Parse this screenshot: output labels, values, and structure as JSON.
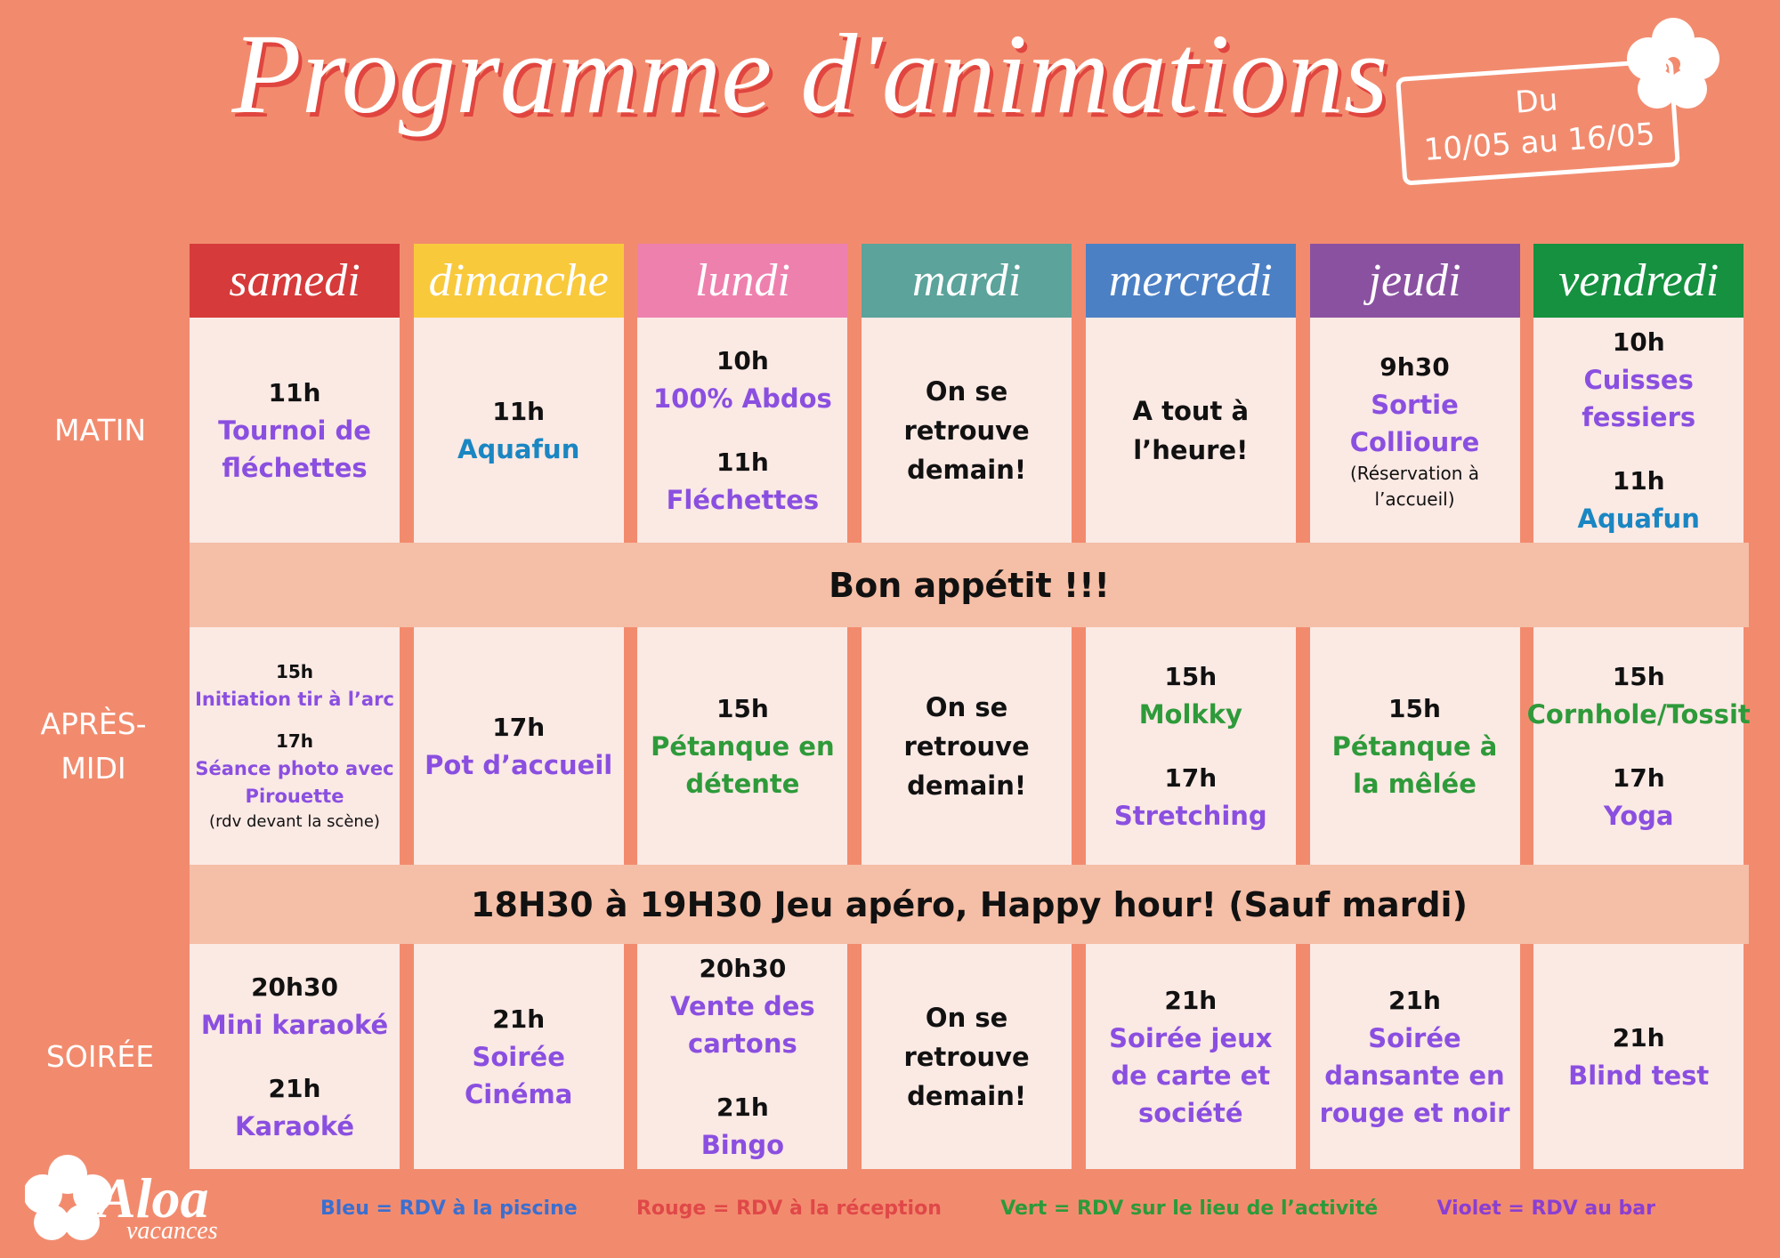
{
  "title": "Programme d'animations",
  "date_badge": {
    "line1": "Du",
    "line2": "10/05 au 16/05"
  },
  "days": [
    {
      "name": "samedi",
      "color": "#d63a3a"
    },
    {
      "name": "dimanche",
      "color": "#f9c93c"
    },
    {
      "name": "lundi",
      "color": "#ee80ae"
    },
    {
      "name": "mardi",
      "color": "#5ba39b"
    },
    {
      "name": "mercredi",
      "color": "#4c80c5"
    },
    {
      "name": "jeudi",
      "color": "#8a51a1"
    },
    {
      "name": "vendredi",
      "color": "#15913f"
    }
  ],
  "periods": [
    "MATIN",
    "APRÈS-MIDI",
    "SOIRÉE"
  ],
  "banners": [
    "Bon appétit !!!",
    "18H30 à 19H30 Jeu apéro, Happy hour! (Sauf mardi)"
  ],
  "kind_colors": {
    "time": "#111111",
    "purple": "#8a4fe0",
    "blue": "#1a86c2",
    "green": "#2e9a3a",
    "plain": "#111111",
    "note": "#111111"
  },
  "cells": [
    [
      [
        [
          {
            "text": "11h",
            "kind": "time"
          },
          {
            "text": "Tournoi de fléchettes",
            "kind": "purple"
          }
        ]
      ],
      [
        [
          {
            "text": "11h",
            "kind": "time"
          },
          {
            "text": "Aquafun",
            "kind": "blue"
          }
        ]
      ],
      [
        [
          {
            "text": "10h",
            "kind": "time"
          },
          {
            "text": "100% Abdos",
            "kind": "purple"
          }
        ],
        [
          {
            "text": "11h",
            "kind": "time"
          },
          {
            "text": "Fléchettes",
            "kind": "purple"
          }
        ]
      ],
      [
        [
          {
            "text": "On se retrouve demain!",
            "kind": "plain"
          }
        ]
      ],
      [
        [
          {
            "text": "A tout à l’heure!",
            "kind": "plain"
          }
        ]
      ],
      [
        [
          {
            "text": "9h30",
            "kind": "time"
          },
          {
            "text": "Sortie Collioure",
            "kind": "purple"
          },
          {
            "text": "(Réservation à l’accueil)",
            "kind": "note"
          }
        ]
      ],
      [
        [
          {
            "text": "10h",
            "kind": "time"
          },
          {
            "text": "Cuisses fessiers",
            "kind": "purple"
          }
        ],
        [
          {
            "text": "11h",
            "kind": "time"
          },
          {
            "text": "Aquafun",
            "kind": "blue"
          }
        ]
      ]
    ],
    [
      [
        [
          {
            "text": "15h",
            "kind": "time"
          },
          {
            "text": "Initiation tir à l’arc",
            "kind": "purple"
          }
        ],
        [
          {
            "text": "17h",
            "kind": "time"
          },
          {
            "text": "Séance photo avec Pirouette",
            "kind": "purple"
          },
          {
            "text": "(rdv devant la scène)",
            "kind": "note"
          }
        ]
      ],
      [
        [
          {
            "text": "17h",
            "kind": "time"
          },
          {
            "text": "Pot d’accueil",
            "kind": "purple"
          }
        ]
      ],
      [
        [
          {
            "text": "15h",
            "kind": "time"
          },
          {
            "text": "Pétanque en détente",
            "kind": "green"
          }
        ]
      ],
      [
        [
          {
            "text": "On se retrouve demain!",
            "kind": "plain"
          }
        ]
      ],
      [
        [
          {
            "text": "15h",
            "kind": "time"
          },
          {
            "text": "Molkky",
            "kind": "green"
          }
        ],
        [
          {
            "text": "17h",
            "kind": "time"
          },
          {
            "text": "Stretching",
            "kind": "purple"
          }
        ]
      ],
      [
        [
          {
            "text": "15h",
            "kind": "time"
          },
          {
            "text": "Pétanque à la mêlée",
            "kind": "green"
          }
        ]
      ],
      [
        [
          {
            "text": "15h",
            "kind": "time"
          },
          {
            "text": "Cornhole/Tossit",
            "kind": "green"
          }
        ],
        [
          {
            "text": "17h",
            "kind": "time"
          },
          {
            "text": "Yoga",
            "kind": "purple"
          }
        ]
      ]
    ],
    [
      [
        [
          {
            "text": "20h30",
            "kind": "time"
          },
          {
            "text": "Mini karaoké",
            "kind": "purple"
          }
        ],
        [
          {
            "text": "21h",
            "kind": "time"
          },
          {
            "text": "Karaoké",
            "kind": "purple"
          }
        ]
      ],
      [
        [
          {
            "text": "21h",
            "kind": "time"
          },
          {
            "text": "Soirée Cinéma",
            "kind": "purple"
          }
        ]
      ],
      [
        [
          {
            "text": "20h30",
            "kind": "time"
          },
          {
            "text": "Vente des cartons",
            "kind": "purple"
          }
        ],
        [
          {
            "text": "21h",
            "kind": "time"
          },
          {
            "text": "Bingo",
            "kind": "purple"
          }
        ]
      ],
      [
        [
          {
            "text": "On se retrouve demain!",
            "kind": "plain"
          }
        ]
      ],
      [
        [
          {
            "text": "21h",
            "kind": "time"
          },
          {
            "text": "Soirée jeux de carte et société",
            "kind": "purple"
          }
        ]
      ],
      [
        [
          {
            "text": "21h",
            "kind": "time"
          },
          {
            "text": "Soirée dansante en rouge et noir",
            "kind": "purple"
          }
        ]
      ],
      [
        [
          {
            "text": "21h",
            "kind": "time"
          },
          {
            "text": "Blind test",
            "kind": "purple"
          }
        ]
      ]
    ]
  ],
  "legend": [
    {
      "text": "Bleu = RDV à la piscine",
      "color": "#3a6fd0"
    },
    {
      "text": "Rouge = RDV à la réception",
      "color": "#e04848"
    },
    {
      "text": "Vert = RDV sur le lieu de l’activité",
      "color": "#2c9a3a"
    },
    {
      "text": "Violet = RDV au bar",
      "color": "#8a3fd0"
    }
  ],
  "logo": {
    "name": "Aloa",
    "tagline": "vacances"
  }
}
